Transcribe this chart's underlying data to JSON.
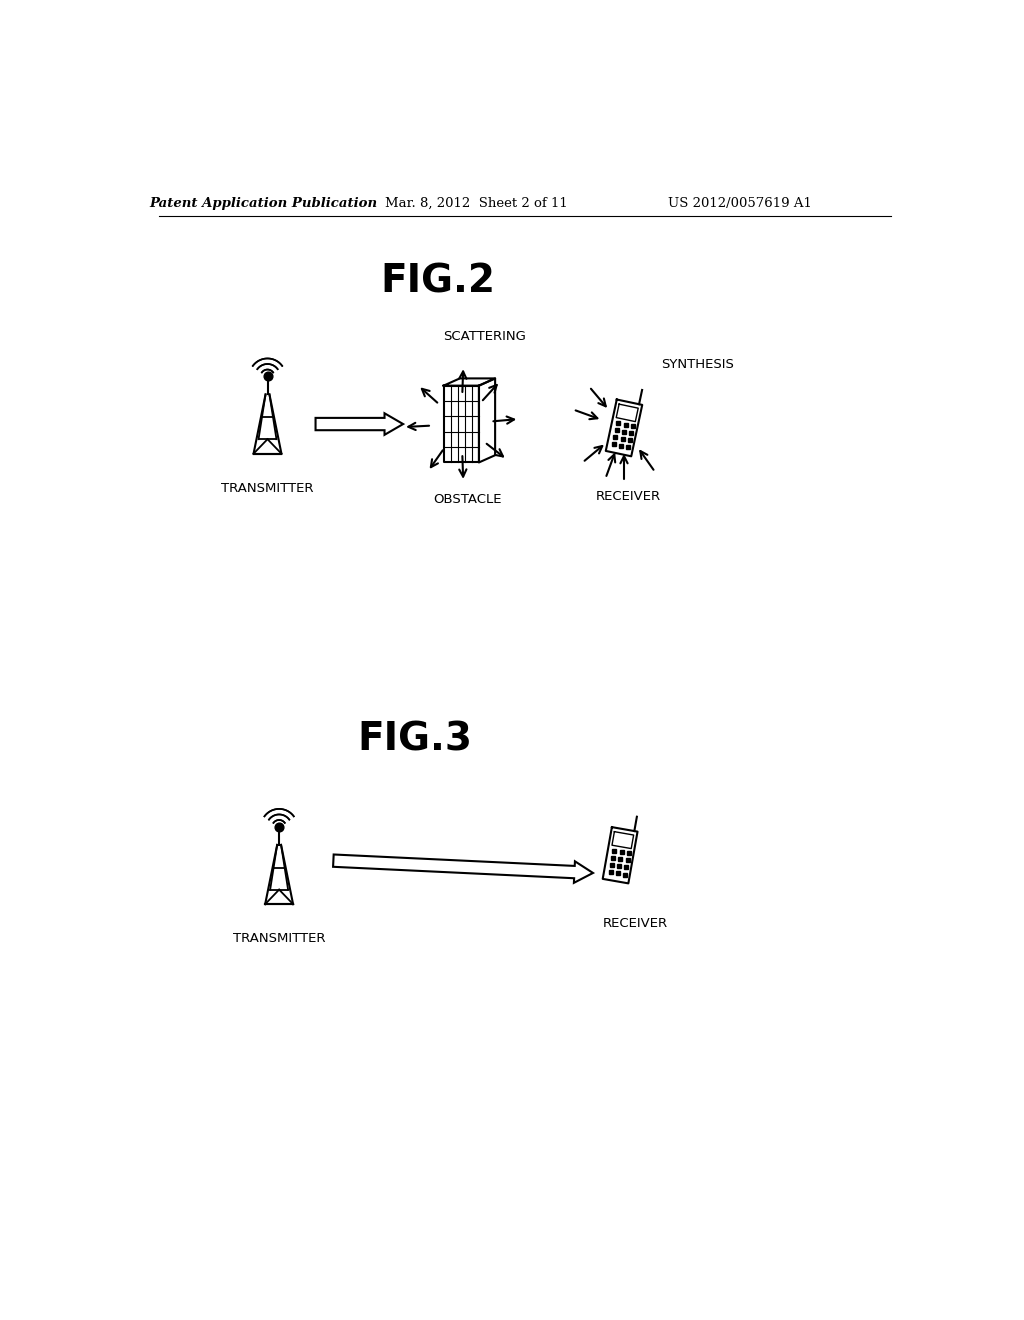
{
  "background_color": "#ffffff",
  "header_left": "Patent Application Publication",
  "header_center": "Mar. 8, 2012  Sheet 2 of 11",
  "header_right": "US 2012/0057619 A1",
  "fig2_title": "FIG.2",
  "fig3_title": "FIG.3",
  "fig2_labels": {
    "transmitter": "TRANSMITTER",
    "obstacle": "OBSTACLE",
    "receiver": "RECEIVER",
    "scattering": "SCATTERING",
    "synthesis": "SYNTHESIS"
  },
  "fig3_labels": {
    "transmitter": "TRANSMITTER",
    "receiver": "RECEIVER"
  },
  "text_color": "#000000",
  "line_color": "#000000"
}
